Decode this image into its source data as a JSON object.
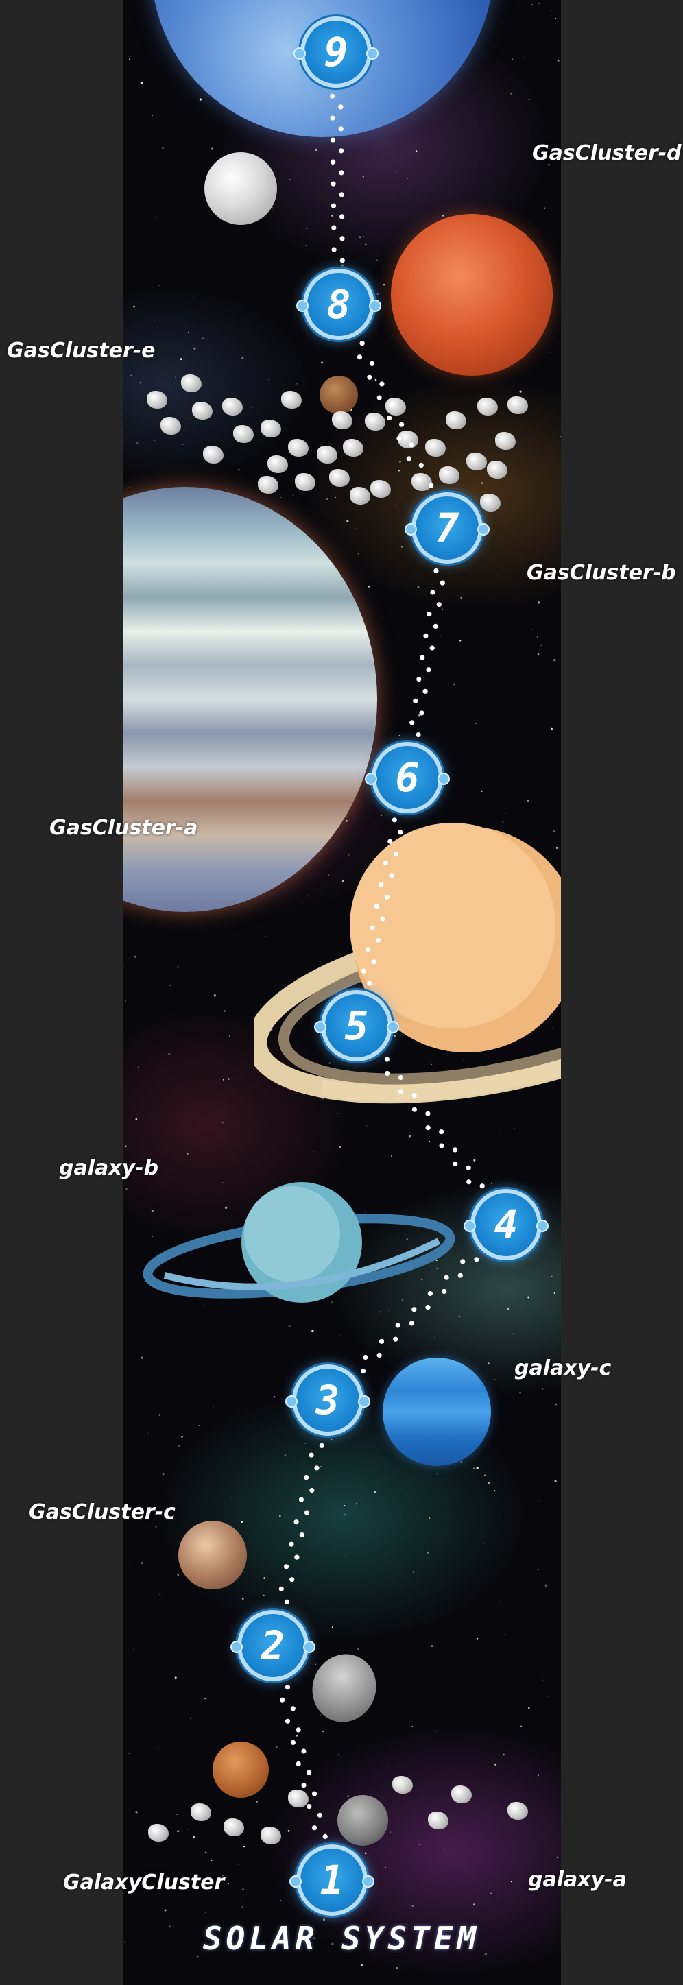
{
  "board": {
    "title": "SOLAR SYSTEM",
    "nodes": [
      {
        "number": "1",
        "icon": "space-1-node-icon"
      },
      {
        "number": "2",
        "icon": "space-2-node-icon"
      },
      {
        "number": "3",
        "icon": "space-3-node-icon"
      },
      {
        "number": "4",
        "icon": "space-4-node-icon"
      },
      {
        "number": "5",
        "icon": "space-5-node-icon"
      },
      {
        "number": "6",
        "icon": "space-6-node-icon"
      },
      {
        "number": "7",
        "icon": "space-7-node-icon"
      },
      {
        "number": "8",
        "icon": "space-8-node-icon"
      },
      {
        "number": "9",
        "icon": "space-9-node-icon"
      }
    ],
    "labels": {
      "gascluster_d": "GasCluster-d",
      "gascluster_e": "GasCluster-e",
      "gascluster_b": "GasCluster-b",
      "gascluster_a": "GasCluster-a",
      "galaxy_b": "galaxy-b",
      "galaxy_c": "galaxy-c",
      "gascluster_c": "GasCluster-c",
      "galaxycluster": "GalaxyCluster",
      "galaxy_a": "galaxy-a"
    },
    "planet_icons": [
      "earth-icon",
      "moon-icon",
      "mars-icon",
      "asteroid-belt-icon",
      "jupiter-icon",
      "saturn-icon",
      "uranus-icon",
      "neptune-icon",
      "pluto-icon",
      "mercury-icon"
    ],
    "colors": {
      "node_fill": "#1a86d2",
      "node_ring": "#b8def6",
      "paw_trail": "#ffffff",
      "background": "#08080c"
    }
  }
}
